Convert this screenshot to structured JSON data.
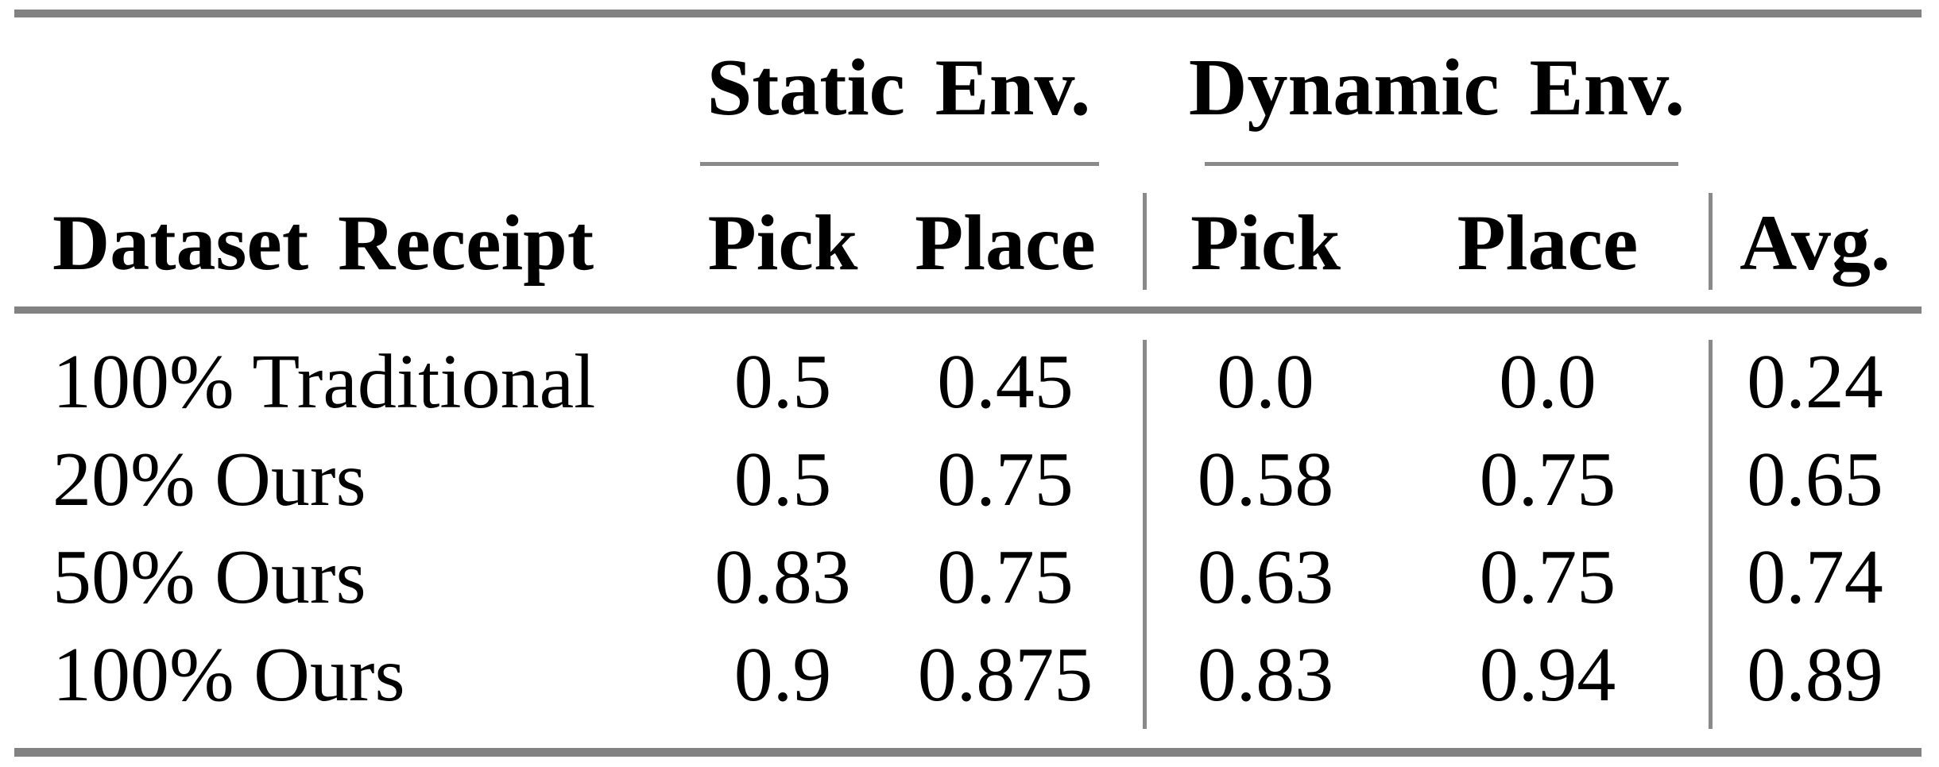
{
  "table": {
    "group_headers": {
      "static": "Static Env.",
      "dynamic": "Dynamic Env."
    },
    "columns": {
      "label": "Dataset Receipt",
      "static_pick": "Pick",
      "static_place": "Place",
      "dynamic_pick": "Pick",
      "dynamic_place": "Place",
      "avg": "Avg."
    },
    "rows": [
      {
        "label": "100% Traditional",
        "static_pick": "0.5",
        "static_place": "0.45",
        "dynamic_pick": "0.0",
        "dynamic_place": "0.0",
        "avg": "0.24"
      },
      {
        "label": "20% Ours",
        "static_pick": "0.5",
        "static_place": "0.75",
        "dynamic_pick": "0.58",
        "dynamic_place": "0.75",
        "avg": "0.65"
      },
      {
        "label": "50% Ours",
        "static_pick": "0.83",
        "static_place": "0.75",
        "dynamic_pick": "0.63",
        "dynamic_place": "0.75",
        "avg": "0.74"
      },
      {
        "label": "100% Ours",
        "static_pick": "0.9",
        "static_place": "0.875",
        "dynamic_pick": "0.83",
        "dynamic_place": "0.94",
        "avg": "0.89"
      }
    ],
    "colors": {
      "rule_gray": "#828282",
      "text": "#000000",
      "background": "#ffffff"
    }
  },
  "chart_data": {
    "type": "table",
    "title": "",
    "columns": [
      "Dataset Receipt",
      "Static Env. Pick",
      "Static Env. Place",
      "Dynamic Env. Pick",
      "Dynamic Env. Place",
      "Avg."
    ],
    "rows": [
      [
        "100% Traditional",
        0.5,
        0.45,
        0.0,
        0.0,
        0.24
      ],
      [
        "20% Ours",
        0.5,
        0.75,
        0.58,
        0.75,
        0.65
      ],
      [
        "50% Ours",
        0.83,
        0.75,
        0.63,
        0.75,
        0.74
      ],
      [
        "100% Ours",
        0.9,
        0.875,
        0.83,
        0.94,
        0.89
      ]
    ]
  }
}
